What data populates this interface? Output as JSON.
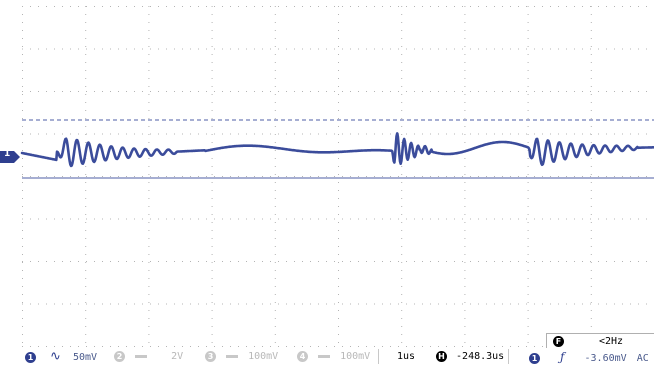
{
  "channel_marker": "1",
  "status_bar": {
    "ch1": {
      "num": "1",
      "coupling_icon": "ac-wave-icon",
      "scale": "50mV"
    },
    "ch2": {
      "num": "2",
      "scale": "2V"
    },
    "ch3": {
      "num": "3",
      "scale": "100mV"
    },
    "ch4": {
      "num": "4",
      "scale": "100mV"
    },
    "timebase": "1us",
    "horizontal_label": "H",
    "horizontal_position": "-248.3us",
    "trigger": {
      "source": "1",
      "edge_icon": "rising-edge-icon",
      "level": "-3.60mV",
      "coupling": "AC"
    }
  },
  "frequency": {
    "label": "F",
    "value": "<2Hz"
  },
  "colors": {
    "trace": "#3b4c9b",
    "grid": "#b4b4b4",
    "baseline": "#4d5ea6",
    "accent": "#2f3f8f"
  }
}
